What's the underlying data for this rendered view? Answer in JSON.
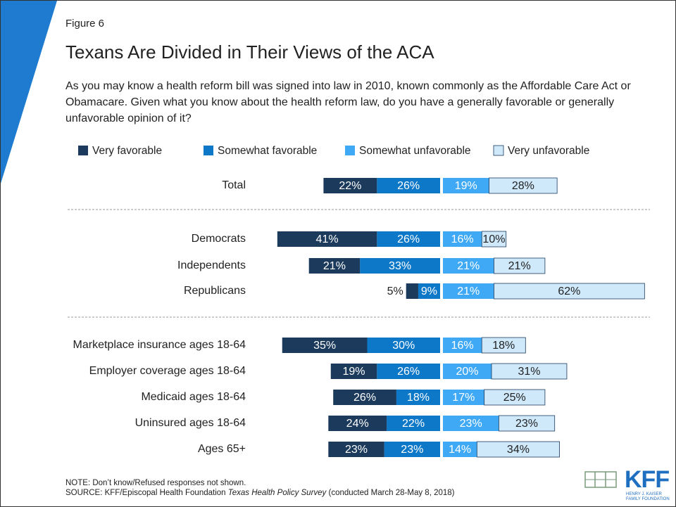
{
  "figure": "Figure 6",
  "chart_data": {
    "type": "diverging_bar",
    "title": "Texans Are Divided in Their Views of the ACA",
    "subtitle": "As you may know a health reform bill was signed into law in 2010, known commonly as the Affordable Care Act or Obamacare. Given what you know about the health reform law, do you have a generally favorable or generally unfavorable opinion of it?",
    "categories": [
      "Total",
      "Democrats",
      "Independents",
      "Republicans",
      "Marketplace insurance ages 18-64",
      "Employer coverage ages 18-64",
      "Medicaid ages 18-64",
      "Uninsured ages 18-64",
      "Ages 65+"
    ],
    "series": [
      {
        "name": "Very favorable",
        "color": "#1b3a5c",
        "values": [
          22,
          41,
          21,
          5,
          35,
          19,
          26,
          24,
          23
        ],
        "value_labels": [
          "22%",
          "41%",
          "21%",
          "5%",
          "35%",
          "19%",
          "26%",
          "24%",
          "23%"
        ]
      },
      {
        "name": "Somewhat favorable",
        "color": "#0d78c8",
        "values": [
          26,
          26,
          33,
          9,
          30,
          26,
          18,
          22,
          23
        ],
        "value_labels": [
          "26%",
          "26%",
          "33%",
          "9%",
          "30%",
          "26%",
          "18%",
          "22%",
          "23%"
        ]
      },
      {
        "name": "Somewhat unfavorable",
        "color": "#3fa9f5",
        "values": [
          19,
          16,
          21,
          21,
          16,
          20,
          17,
          23,
          14
        ],
        "value_labels": [
          "19%",
          "16%",
          "21%",
          "21%",
          "16%",
          "20%",
          "17%",
          "23%",
          "14%"
        ]
      },
      {
        "name": "Very unfavorable",
        "color": "#cfe9fb",
        "values": [
          28,
          10,
          21,
          62,
          18,
          31,
          25,
          23,
          34
        ],
        "value_labels": [
          "28%",
          "10%",
          "21%",
          "62%",
          "18%",
          "31%",
          "25%",
          "23%",
          "34%"
        ]
      }
    ]
  },
  "note": "NOTE: Don’t know/Refused responses not shown.",
  "source": {
    "prefix": "SOURCE: KFF/Episcopal Health Foundation",
    "italic": "Texas Health Policy Survey",
    "suffix": "(conducted March 28-May 8, 2018)"
  },
  "logo": {
    "name": "KFF",
    "line1": "HENRY J. KAISER",
    "line2": "FAMILY FOUNDATION"
  }
}
